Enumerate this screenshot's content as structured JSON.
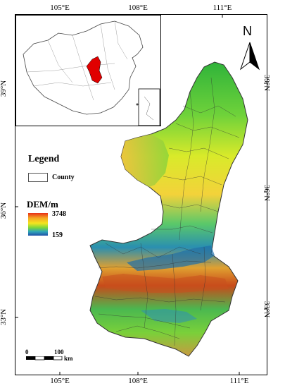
{
  "axes": {
    "lon_labels": [
      "105°E",
      "108°E",
      "111°E"
    ],
    "lat_labels": [
      "39°N",
      "36°N",
      "33°N"
    ]
  },
  "legend": {
    "title": "Legend",
    "county_label": "County"
  },
  "dem": {
    "title": "DEM/m",
    "max": "3748",
    "min": "159",
    "colors": [
      "#e83018",
      "#f5a623",
      "#f5e51f",
      "#7bd63c",
      "#2fa7b8",
      "#1f4fa8"
    ]
  },
  "north_arrow": {
    "label": "N",
    "icon": "north-arrow-icon"
  },
  "scale_bar": {
    "start": "0",
    "end": "100",
    "unit": "km"
  },
  "inset": {
    "highlight_color": "#e00000"
  }
}
